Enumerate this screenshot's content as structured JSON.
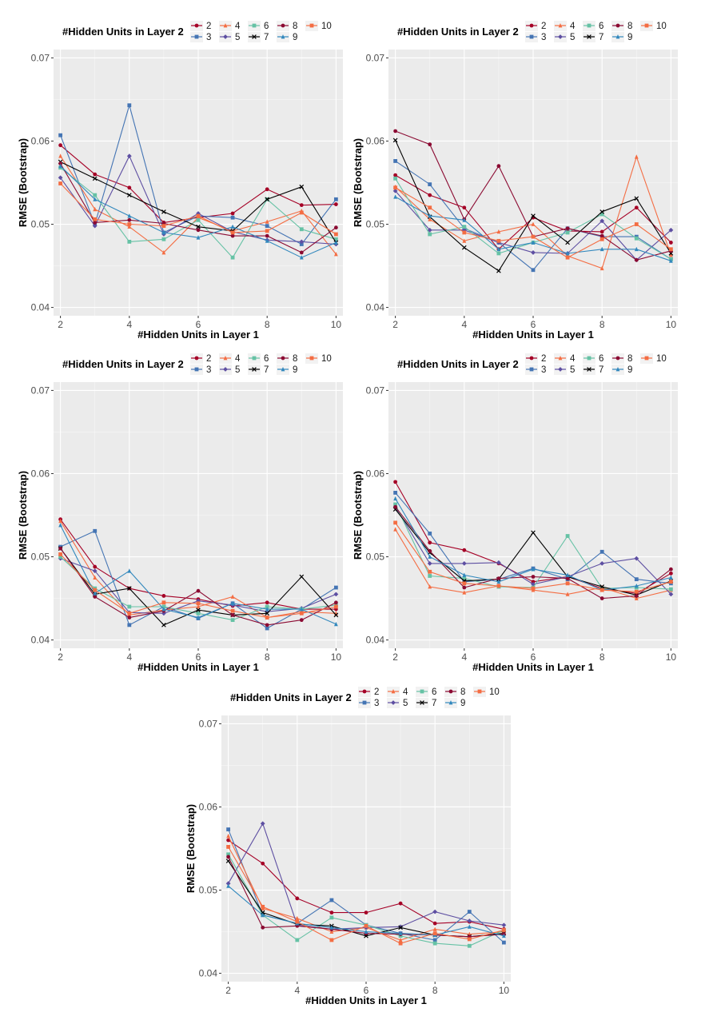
{
  "colors": {
    "2": "#a50026",
    "3": "#4575b4",
    "4": "#f46d43",
    "5": "#5e4fa2",
    "6": "#66c2a5",
    "7": "#000000",
    "8": "#8b0a32",
    "9": "#3288bd",
    "10": "#f46d43"
  },
  "chart_data": [
    {
      "type": "line",
      "xlabel": "#Hidden Units in Layer 1",
      "ylabel": "RMSE (Bootstrap)",
      "legend_title": "#Hidden Units in Layer 2",
      "legend_position": "top",
      "grid": true,
      "ylim": [
        0.039,
        0.071
      ],
      "xlim": [
        1.8,
        10.2
      ],
      "y_ticks": [
        "0.04",
        "0.05",
        "0.06",
        "0.07"
      ],
      "x_ticks": [
        "2",
        "4",
        "6",
        "8",
        "10"
      ],
      "x": [
        2,
        3,
        4,
        5,
        6,
        7,
        8,
        9,
        10
      ],
      "series": [
        {
          "name": "2",
          "values": [
            0.0595,
            0.056,
            0.0544,
            0.0502,
            0.0508,
            0.0513,
            0.0542,
            0.0523,
            0.0524
          ]
        },
        {
          "name": "3",
          "values": [
            0.0607,
            0.05,
            0.0643,
            0.049,
            0.051,
            0.0508,
            0.0498,
            0.0476,
            0.053
          ]
        },
        {
          "name": "4",
          "values": [
            0.0582,
            0.0518,
            0.0497,
            0.0466,
            0.0508,
            0.0492,
            0.0503,
            0.0516,
            0.0464
          ]
        },
        {
          "name": "5",
          "values": [
            0.0556,
            0.0498,
            0.0582,
            0.0488,
            0.0513,
            0.0491,
            0.0481,
            0.0479,
            0.0476
          ]
        },
        {
          "name": "6",
          "values": [
            0.0568,
            0.0535,
            0.0479,
            0.0482,
            0.0505,
            0.046,
            0.053,
            0.0494,
            0.0482
          ]
        },
        {
          "name": "7",
          "values": [
            0.0575,
            0.0555,
            0.0535,
            0.0515,
            0.0497,
            0.0492,
            0.053,
            0.0545,
            0.0478
          ]
        },
        {
          "name": "8",
          "values": [
            0.0573,
            0.0502,
            0.0505,
            0.0501,
            0.0493,
            0.0486,
            0.0486,
            0.0466,
            0.0496
          ]
        },
        {
          "name": "9",
          "values": [
            0.057,
            0.053,
            0.051,
            0.049,
            0.0484,
            0.0497,
            0.048,
            0.046,
            0.0478
          ]
        },
        {
          "name": "10",
          "values": [
            0.0549,
            0.0506,
            0.05,
            0.0498,
            0.051,
            0.049,
            0.0492,
            0.0514,
            0.0488
          ]
        }
      ]
    },
    {
      "type": "line",
      "xlabel": "#Hidden Units in Layer 1",
      "ylabel": "RMSE (Bootstrap)",
      "legend_title": "#Hidden Units in Layer 2",
      "legend_position": "top",
      "grid": true,
      "ylim": [
        0.039,
        0.071
      ],
      "xlim": [
        1.8,
        10.2
      ],
      "y_ticks": [
        "0.04",
        "0.05",
        "0.06",
        "0.07"
      ],
      "x_ticks": [
        "2",
        "4",
        "6",
        "8",
        "10"
      ],
      "x": [
        2,
        3,
        4,
        5,
        6,
        7,
        8,
        9,
        10
      ],
      "series": [
        {
          "name": "2",
          "values": [
            0.0559,
            0.0535,
            0.052,
            0.047,
            0.0508,
            0.0492,
            0.0491,
            0.052,
            0.0478
          ]
        },
        {
          "name": "3",
          "values": [
            0.0576,
            0.0548,
            0.0495,
            0.0478,
            0.0445,
            0.0495,
            0.0485,
            0.0485,
            0.0458
          ]
        },
        {
          "name": "4",
          "values": [
            0.0545,
            0.0506,
            0.048,
            0.0491,
            0.05,
            0.0462,
            0.0447,
            0.0581,
            0.0463
          ]
        },
        {
          "name": "5",
          "values": [
            0.054,
            0.0493,
            0.0493,
            0.0478,
            0.0466,
            0.0465,
            0.0504,
            0.0457,
            0.0493
          ]
        },
        {
          "name": "6",
          "values": [
            0.0555,
            0.0488,
            0.0497,
            0.0465,
            0.0478,
            0.049,
            0.0512,
            0.0483,
            0.0458
          ]
        },
        {
          "name": "7",
          "values": [
            0.0601,
            0.0509,
            0.0472,
            0.0444,
            0.051,
            0.0478,
            0.0515,
            0.0531,
            0.0465
          ]
        },
        {
          "name": "8",
          "values": [
            0.0612,
            0.0596,
            0.0506,
            0.057,
            0.0485,
            0.0495,
            0.0486,
            0.0457,
            0.0468
          ]
        },
        {
          "name": "9",
          "values": [
            0.0533,
            0.051,
            0.0505,
            0.047,
            0.0478,
            0.0465,
            0.047,
            0.047,
            0.0456
          ]
        },
        {
          "name": "10",
          "values": [
            0.0544,
            0.052,
            0.049,
            0.048,
            0.0485,
            0.046,
            0.0482,
            0.05,
            0.047
          ]
        }
      ]
    },
    {
      "type": "line",
      "xlabel": "#Hidden Units in Layer 1",
      "ylabel": "RMSE (Bootstrap)",
      "legend_title": "#Hidden Units in Layer 2",
      "legend_position": "top",
      "grid": true,
      "ylim": [
        0.039,
        0.071
      ],
      "xlim": [
        1.8,
        10.2
      ],
      "y_ticks": [
        "0.04",
        "0.05",
        "0.06",
        "0.07"
      ],
      "x_ticks": [
        "2",
        "4",
        "6",
        "8",
        "10"
      ],
      "x": [
        2,
        3,
        4,
        5,
        6,
        7,
        8,
        9,
        10
      ],
      "series": [
        {
          "name": "2",
          "values": [
            0.0545,
            0.0488,
            0.0462,
            0.0453,
            0.0449,
            0.0441,
            0.0445,
            0.0437,
            0.0437
          ]
        },
        {
          "name": "3",
          "values": [
            0.0512,
            0.0531,
            0.0418,
            0.044,
            0.0426,
            0.0444,
            0.0414,
            0.0437,
            0.0463
          ]
        },
        {
          "name": "4",
          "values": [
            0.0543,
            0.0475,
            0.043,
            0.0436,
            0.044,
            0.0452,
            0.0427,
            0.0434,
            0.0432
          ]
        },
        {
          "name": "5",
          "values": [
            0.0498,
            0.0483,
            0.0433,
            0.0432,
            0.0447,
            0.0442,
            0.0434,
            0.0438,
            0.0455
          ]
        },
        {
          "name": "6",
          "values": [
            0.05,
            0.0462,
            0.044,
            0.044,
            0.0432,
            0.0424,
            0.044,
            0.0437,
            0.0442
          ]
        },
        {
          "name": "7",
          "values": [
            0.051,
            0.0455,
            0.0462,
            0.0418,
            0.0436,
            0.043,
            0.0432,
            0.0476,
            0.043
          ]
        },
        {
          "name": "8",
          "values": [
            0.051,
            0.0452,
            0.0427,
            0.0435,
            0.0459,
            0.043,
            0.0418,
            0.0424,
            0.0445
          ]
        },
        {
          "name": "9",
          "values": [
            0.0538,
            0.0456,
            0.0483,
            0.0437,
            0.0427,
            0.0444,
            0.0437,
            0.0437,
            0.0419
          ]
        },
        {
          "name": "10",
          "values": [
            0.0503,
            0.046,
            0.0432,
            0.0445,
            0.0444,
            0.0435,
            0.0427,
            0.0432,
            0.044
          ]
        }
      ]
    },
    {
      "type": "line",
      "xlabel": "#Hidden Units in Layer 1",
      "ylabel": "RMSE (Bootstrap)",
      "legend_title": "#Hidden Units in Layer 2",
      "legend_position": "top",
      "grid": true,
      "ylim": [
        0.039,
        0.071
      ],
      "xlim": [
        1.8,
        10.2
      ],
      "y_ticks": [
        "0.04",
        "0.05",
        "0.06",
        "0.07"
      ],
      "x_ticks": [
        "2",
        "4",
        "6",
        "8",
        "10"
      ],
      "x": [
        2,
        3,
        4,
        5,
        6,
        7,
        8,
        9,
        10
      ],
      "series": [
        {
          "name": "2",
          "values": [
            0.059,
            0.0517,
            0.0508,
            0.0492,
            0.047,
            0.0476,
            0.0462,
            0.0456,
            0.048
          ]
        },
        {
          "name": "3",
          "values": [
            0.0577,
            0.0528,
            0.047,
            0.0473,
            0.0486,
            0.0473,
            0.0506,
            0.0473,
            0.0468
          ]
        },
        {
          "name": "4",
          "values": [
            0.0533,
            0.0464,
            0.0457,
            0.0465,
            0.046,
            0.0455,
            0.0463,
            0.045,
            0.046
          ]
        },
        {
          "name": "5",
          "values": [
            0.056,
            0.0492,
            0.0492,
            0.0493,
            0.0467,
            0.0476,
            0.0492,
            0.0498,
            0.0455
          ]
        },
        {
          "name": "6",
          "values": [
            0.0563,
            0.0477,
            0.0474,
            0.0464,
            0.0463,
            0.0525,
            0.0462,
            0.0463,
            0.0461
          ]
        },
        {
          "name": "7",
          "values": [
            0.0557,
            0.0505,
            0.0471,
            0.0473,
            0.0529,
            0.0476,
            0.0464,
            0.0454,
            0.0471
          ]
        },
        {
          "name": "8",
          "values": [
            0.056,
            0.0507,
            0.0463,
            0.0474,
            0.0476,
            0.0474,
            0.045,
            0.0453,
            0.0485
          ]
        },
        {
          "name": "9",
          "values": [
            0.057,
            0.05,
            0.0478,
            0.047,
            0.0485,
            0.0478,
            0.046,
            0.0465,
            0.0475
          ]
        },
        {
          "name": "10",
          "values": [
            0.0541,
            0.0482,
            0.0468,
            0.0465,
            0.0462,
            0.0468,
            0.046,
            0.0458,
            0.047
          ]
        }
      ]
    },
    {
      "type": "line",
      "xlabel": "#Hidden Units in Layer 1",
      "ylabel": "RMSE (Bootstrap)",
      "legend_title": "#Hidden Units in Layer 2",
      "legend_position": "top",
      "grid": true,
      "ylim": [
        0.039,
        0.071
      ],
      "xlim": [
        1.8,
        10.2
      ],
      "y_ticks": [
        "0.04",
        "0.05",
        "0.06",
        "0.07"
      ],
      "x_ticks": [
        "2",
        "4",
        "6",
        "8",
        "10"
      ],
      "x": [
        2,
        3,
        4,
        5,
        6,
        7,
        8,
        9,
        10
      ],
      "series": [
        {
          "name": "2",
          "values": [
            0.056,
            0.0532,
            0.049,
            0.0473,
            0.0473,
            0.0484,
            0.046,
            0.0462,
            0.0453
          ]
        },
        {
          "name": "3",
          "values": [
            0.0573,
            0.047,
            0.046,
            0.0488,
            0.0458,
            0.0448,
            0.044,
            0.0474,
            0.0437
          ]
        },
        {
          "name": "4",
          "values": [
            0.0565,
            0.0478,
            0.0466,
            0.045,
            0.0455,
            0.044,
            0.0453,
            0.0447,
            0.045
          ]
        },
        {
          "name": "5",
          "values": [
            0.0508,
            0.058,
            0.0458,
            0.0453,
            0.0455,
            0.0456,
            0.0474,
            0.0463,
            0.0458
          ]
        },
        {
          "name": "6",
          "values": [
            0.0543,
            0.047,
            0.044,
            0.0467,
            0.0458,
            0.0445,
            0.0436,
            0.0433,
            0.0452
          ]
        },
        {
          "name": "7",
          "values": [
            0.0535,
            0.0473,
            0.0459,
            0.0457,
            0.0445,
            0.0455,
            0.0446,
            0.0444,
            0.0448
          ]
        },
        {
          "name": "8",
          "values": [
            0.054,
            0.0455,
            0.0457,
            0.0453,
            0.0448,
            0.0447,
            0.0446,
            0.0444,
            0.0447
          ]
        },
        {
          "name": "9",
          "values": [
            0.0505,
            0.047,
            0.046,
            0.0455,
            0.045,
            0.0448,
            0.0446,
            0.0456,
            0.0445
          ]
        },
        {
          "name": "10",
          "values": [
            0.0552,
            0.048,
            0.0462,
            0.044,
            0.0457,
            0.0436,
            0.0448,
            0.0441,
            0.0452
          ]
        }
      ]
    }
  ]
}
